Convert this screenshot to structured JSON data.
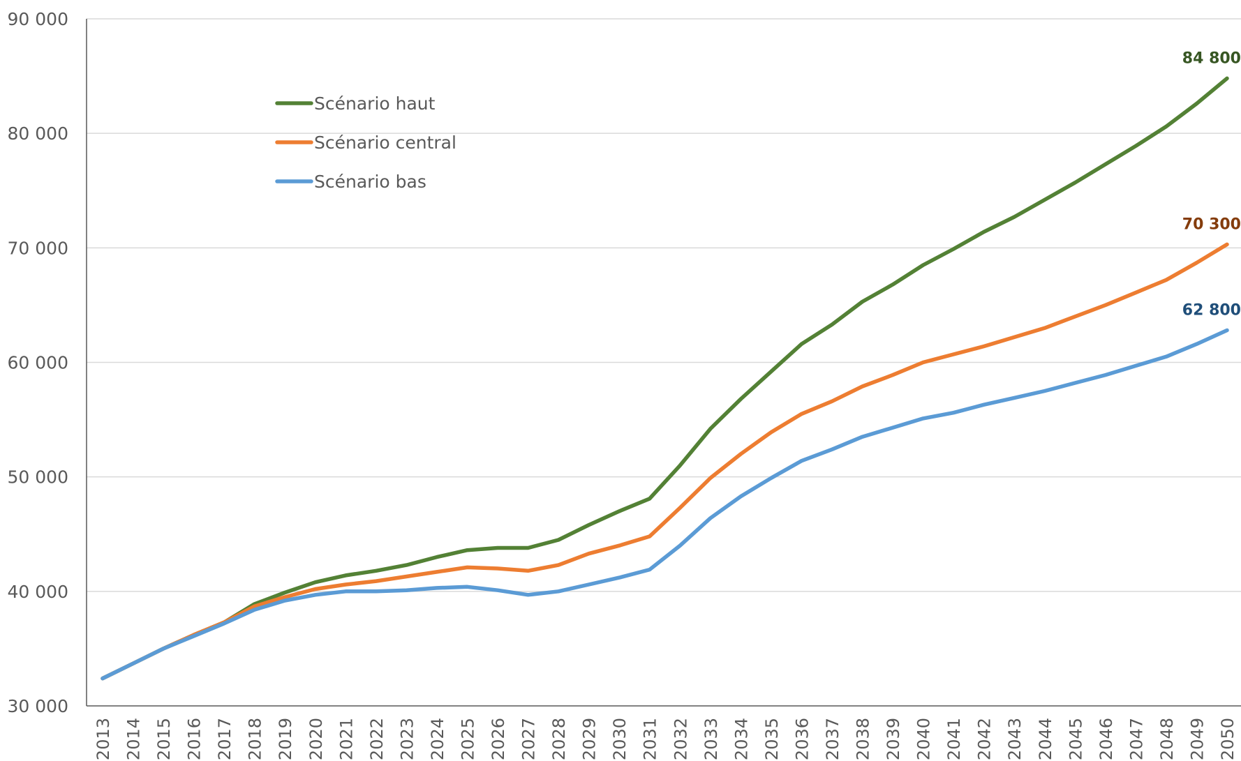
{
  "chart_data": {
    "type": "line",
    "title": "",
    "xlabel": "",
    "ylabel": "",
    "ylim": [
      30000,
      90000
    ],
    "yticks": [
      30000,
      40000,
      50000,
      60000,
      70000,
      80000,
      90000
    ],
    "ytick_labels": [
      "30 000",
      "40 000",
      "50 000",
      "60 000",
      "70 000",
      "80 000",
      "90 000"
    ],
    "grid": "horizontal",
    "legend_position": "top-left",
    "x": [
      2013,
      2014,
      2015,
      2016,
      2017,
      2018,
      2019,
      2020,
      2021,
      2022,
      2023,
      2024,
      2025,
      2026,
      2027,
      2028,
      2029,
      2030,
      2031,
      2032,
      2033,
      2034,
      2035,
      2036,
      2037,
      2038,
      2039,
      2040,
      2041,
      2042,
      2043,
      2044,
      2045,
      2046,
      2047,
      2048,
      2049,
      2050
    ],
    "x_labels": [
      "2013",
      "2014",
      "2015",
      "2016",
      "2017",
      "2018",
      "2019",
      "2020",
      "2021",
      "2022",
      "2023",
      "2024",
      "2025",
      "2026",
      "2027",
      "2028",
      "2029",
      "2030",
      "2031",
      "2032",
      "2033",
      "2034",
      "2035",
      "2036",
      "2037",
      "2038",
      "2039",
      "2040",
      "2041",
      "2042",
      "2043",
      "2044",
      "2045",
      "2046",
      "2047",
      "2048",
      "2049",
      "2050"
    ],
    "series": [
      {
        "name": "Scénario haut",
        "color": "#538135",
        "label_color": "#375623",
        "end_label": "84 800",
        "values": [
          32400,
          33700,
          35000,
          36200,
          37300,
          38900,
          39900,
          40800,
          41400,
          41800,
          42300,
          43000,
          43600,
          43800,
          43800,
          44500,
          45800,
          47000,
          48100,
          51000,
          54200,
          56800,
          59200,
          61600,
          63300,
          65300,
          66800,
          68500,
          69900,
          71400,
          72700,
          74200,
          75700,
          77300,
          78900,
          80600,
          82600,
          84800
        ]
      },
      {
        "name": "Scénario central",
        "color": "#ED7D31",
        "label_color": "#843C0C",
        "end_label": "70 300",
        "values": [
          32400,
          33700,
          35000,
          36200,
          37300,
          38700,
          39500,
          40200,
          40600,
          40900,
          41300,
          41700,
          42100,
          42000,
          41800,
          42300,
          43300,
          44000,
          44800,
          47300,
          49900,
          52000,
          53900,
          55500,
          56600,
          57900,
          58900,
          60000,
          60700,
          61400,
          62200,
          63000,
          64000,
          65000,
          66100,
          67200,
          68700,
          70300
        ]
      },
      {
        "name": "Scénario bas",
        "color": "#5B9BD5",
        "label_color": "#1F4E79",
        "end_label": "62 800",
        "values": [
          32400,
          33700,
          35000,
          36100,
          37200,
          38400,
          39200,
          39700,
          40000,
          40000,
          40100,
          40300,
          40400,
          40100,
          39700,
          40000,
          40600,
          41200,
          41900,
          44000,
          46400,
          48300,
          49900,
          51400,
          52400,
          53500,
          54300,
          55100,
          55600,
          56300,
          56900,
          57500,
          58200,
          58900,
          59700,
          60500,
          61600,
          62800
        ]
      }
    ]
  }
}
